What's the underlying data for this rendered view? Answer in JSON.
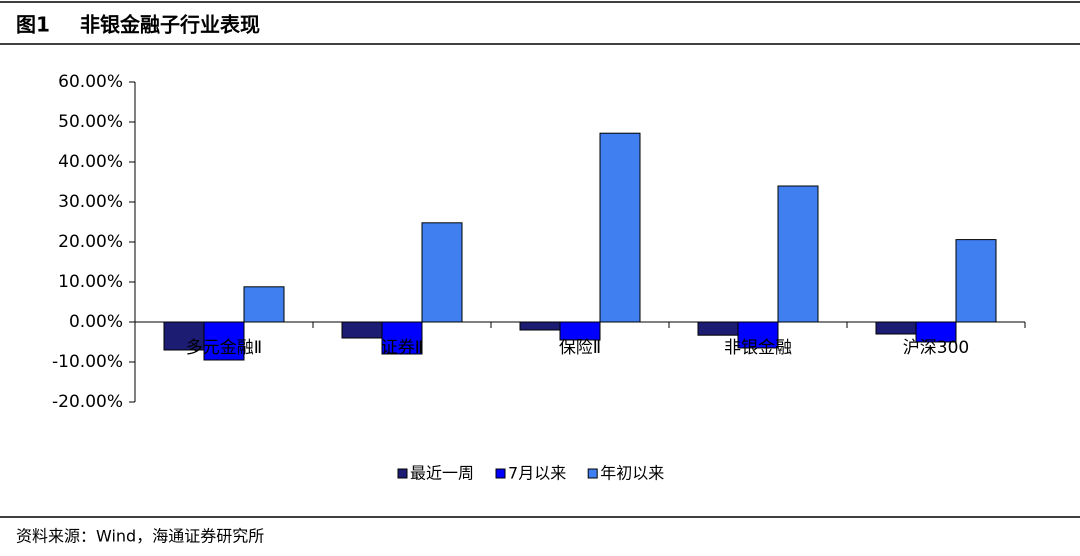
{
  "figure_label": "图1",
  "title": "非银金融子行业表现",
  "source": "资料来源：Wind，海通证券研究所",
  "chart_data": {
    "type": "bar",
    "categories": [
      "多元金融Ⅱ",
      "证券Ⅱ",
      "保险Ⅱ",
      "非银金融",
      "沪深300"
    ],
    "series": [
      {
        "name": "最近一周",
        "color": "#1c1c73",
        "values": [
          -7,
          -4,
          -2,
          -3.3,
          -3
        ]
      },
      {
        "name": "7月以来",
        "color": "#0000ff",
        "values": [
          -9.5,
          -8,
          -4.5,
          -6.5,
          -5
        ]
      },
      {
        "name": "年初以来",
        "color": "#3f7ff0",
        "values": [
          8.8,
          24.8,
          47.2,
          34,
          20.6
        ]
      }
    ],
    "ylim": [
      -20,
      60
    ],
    "yticks": [
      {
        "value": -20,
        "label": "-20.00%"
      },
      {
        "value": -10,
        "label": "-10.00%"
      },
      {
        "value": 0,
        "label": "0.00%"
      },
      {
        "value": 10,
        "label": "10.00%"
      },
      {
        "value": 20,
        "label": "20.00%"
      },
      {
        "value": 30,
        "label": "30.00%"
      },
      {
        "value": 40,
        "label": "40.00%"
      },
      {
        "value": 50,
        "label": "50.00%"
      },
      {
        "value": 60,
        "label": "60.00%"
      }
    ],
    "grid": false,
    "legend": "bottom"
  }
}
